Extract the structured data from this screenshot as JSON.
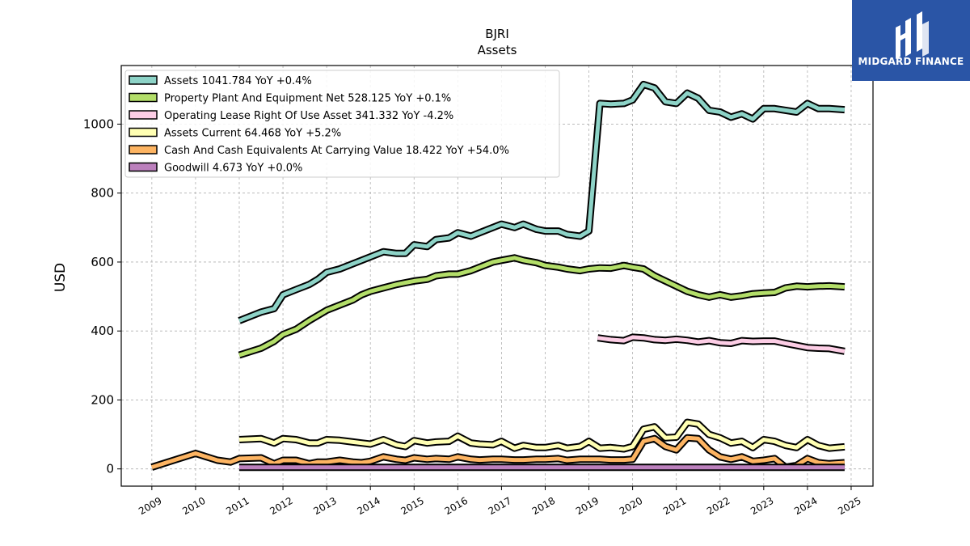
{
  "chart_data": {
    "type": "line",
    "title": "BJRI",
    "subtitle": "Assets",
    "xlabel": "",
    "ylabel": "USD",
    "xlim": [
      2008.3,
      2025.5
    ],
    "ylim": [
      -50,
      1170
    ],
    "grid": true,
    "legend_position": "top-left",
    "x_ticks": [
      "2009",
      "2010",
      "2011",
      "2012",
      "2013",
      "2014",
      "2015",
      "2016",
      "2017",
      "2018",
      "2019",
      "2020",
      "2021",
      "2022",
      "2023",
      "2024",
      "2025"
    ],
    "y_ticks": [
      0,
      200,
      400,
      600,
      800,
      1000
    ],
    "series": [
      {
        "name": "Assets",
        "legend_label": "Assets  1041.784 YoY +0.4%",
        "color": "#8dd3c7",
        "points": [
          [
            2011.0,
            430
          ],
          [
            2011.5,
            455
          ],
          [
            2011.8,
            465
          ],
          [
            2012.0,
            505
          ],
          [
            2012.3,
            520
          ],
          [
            2012.6,
            535
          ],
          [
            2012.8,
            550
          ],
          [
            2013.0,
            570
          ],
          [
            2013.3,
            580
          ],
          [
            2013.6,
            595
          ],
          [
            2013.8,
            605
          ],
          [
            2014.0,
            615
          ],
          [
            2014.3,
            630
          ],
          [
            2014.6,
            625
          ],
          [
            2014.8,
            625
          ],
          [
            2015.0,
            650
          ],
          [
            2015.3,
            645
          ],
          [
            2015.5,
            665
          ],
          [
            2015.8,
            670
          ],
          [
            2016.0,
            685
          ],
          [
            2016.3,
            675
          ],
          [
            2016.5,
            685
          ],
          [
            2016.8,
            700
          ],
          [
            2017.0,
            710
          ],
          [
            2017.3,
            700
          ],
          [
            2017.5,
            710
          ],
          [
            2017.8,
            695
          ],
          [
            2018.0,
            690
          ],
          [
            2018.3,
            690
          ],
          [
            2018.5,
            680
          ],
          [
            2018.8,
            675
          ],
          [
            2019.0,
            690
          ],
          [
            2019.25,
            1060
          ],
          [
            2019.5,
            1058
          ],
          [
            2019.8,
            1060
          ],
          [
            2020.0,
            1070
          ],
          [
            2020.25,
            1115
          ],
          [
            2020.5,
            1105
          ],
          [
            2020.75,
            1065
          ],
          [
            2021.0,
            1060
          ],
          [
            2021.25,
            1090
          ],
          [
            2021.5,
            1075
          ],
          [
            2021.75,
            1040
          ],
          [
            2022.0,
            1035
          ],
          [
            2022.25,
            1020
          ],
          [
            2022.5,
            1030
          ],
          [
            2022.75,
            1015
          ],
          [
            2023.0,
            1045
          ],
          [
            2023.25,
            1045
          ],
          [
            2023.5,
            1040
          ],
          [
            2023.75,
            1035
          ],
          [
            2024.0,
            1060
          ],
          [
            2024.25,
            1045
          ],
          [
            2024.5,
            1045
          ],
          [
            2024.85,
            1042
          ]
        ]
      },
      {
        "name": "Property Plant And Equipment Net",
        "legend_label": "Property Plant And Equipment Net  528.125 YoY +0.1%",
        "color": "#b3de69",
        "points": [
          [
            2011.0,
            330
          ],
          [
            2011.5,
            350
          ],
          [
            2011.8,
            370
          ],
          [
            2012.0,
            390
          ],
          [
            2012.3,
            405
          ],
          [
            2012.6,
            430
          ],
          [
            2012.8,
            445
          ],
          [
            2013.0,
            460
          ],
          [
            2013.3,
            475
          ],
          [
            2013.6,
            490
          ],
          [
            2013.8,
            505
          ],
          [
            2014.0,
            515
          ],
          [
            2014.3,
            525
          ],
          [
            2014.6,
            535
          ],
          [
            2014.8,
            540
          ],
          [
            2015.0,
            545
          ],
          [
            2015.3,
            550
          ],
          [
            2015.5,
            560
          ],
          [
            2015.8,
            565
          ],
          [
            2016.0,
            565
          ],
          [
            2016.3,
            575
          ],
          [
            2016.5,
            585
          ],
          [
            2016.8,
            600
          ],
          [
            2017.0,
            605
          ],
          [
            2017.3,
            612
          ],
          [
            2017.5,
            605
          ],
          [
            2017.8,
            598
          ],
          [
            2018.0,
            590
          ],
          [
            2018.3,
            585
          ],
          [
            2018.5,
            580
          ],
          [
            2018.8,
            575
          ],
          [
            2019.0,
            580
          ],
          [
            2019.25,
            583
          ],
          [
            2019.5,
            582
          ],
          [
            2019.8,
            590
          ],
          [
            2020.0,
            585
          ],
          [
            2020.25,
            580
          ],
          [
            2020.5,
            560
          ],
          [
            2020.75,
            545
          ],
          [
            2021.0,
            530
          ],
          [
            2021.25,
            515
          ],
          [
            2021.5,
            505
          ],
          [
            2021.75,
            498
          ],
          [
            2022.0,
            505
          ],
          [
            2022.25,
            498
          ],
          [
            2022.5,
            502
          ],
          [
            2022.75,
            508
          ],
          [
            2023.0,
            510
          ],
          [
            2023.25,
            512
          ],
          [
            2023.5,
            525
          ],
          [
            2023.75,
            530
          ],
          [
            2024.0,
            528
          ],
          [
            2024.25,
            530
          ],
          [
            2024.5,
            531
          ],
          [
            2024.85,
            528
          ]
        ]
      },
      {
        "name": "Operating Lease Right Of Use Asset",
        "legend_label": "Operating Lease Right Of Use Asset  341.332 YoY -4.2%",
        "color": "#fccde5",
        "points": [
          [
            2019.2,
            380
          ],
          [
            2019.5,
            375
          ],
          [
            2019.8,
            372
          ],
          [
            2020.0,
            382
          ],
          [
            2020.25,
            380
          ],
          [
            2020.5,
            375
          ],
          [
            2020.75,
            373
          ],
          [
            2021.0,
            376
          ],
          [
            2021.25,
            373
          ],
          [
            2021.5,
            368
          ],
          [
            2021.75,
            372
          ],
          [
            2022.0,
            366
          ],
          [
            2022.25,
            364
          ],
          [
            2022.5,
            372
          ],
          [
            2022.75,
            370
          ],
          [
            2023.0,
            371
          ],
          [
            2023.25,
            371
          ],
          [
            2023.5,
            364
          ],
          [
            2023.75,
            358
          ],
          [
            2024.0,
            352
          ],
          [
            2024.25,
            350
          ],
          [
            2024.5,
            349
          ],
          [
            2024.85,
            341
          ]
        ]
      },
      {
        "name": "Assets Current",
        "legend_label": "Assets Current  64.468 YoY +5.2%",
        "color": "#ffffb3",
        "points": [
          [
            2011.0,
            85
          ],
          [
            2011.5,
            88
          ],
          [
            2011.8,
            75
          ],
          [
            2012.0,
            88
          ],
          [
            2012.3,
            85
          ],
          [
            2012.6,
            75
          ],
          [
            2012.8,
            75
          ],
          [
            2013.0,
            85
          ],
          [
            2013.3,
            83
          ],
          [
            2013.6,
            78
          ],
          [
            2013.8,
            75
          ],
          [
            2014.0,
            72
          ],
          [
            2014.3,
            85
          ],
          [
            2014.6,
            70
          ],
          [
            2014.8,
            65
          ],
          [
            2015.0,
            82
          ],
          [
            2015.3,
            75
          ],
          [
            2015.5,
            78
          ],
          [
            2015.8,
            80
          ],
          [
            2016.0,
            95
          ],
          [
            2016.3,
            75
          ],
          [
            2016.5,
            72
          ],
          [
            2016.8,
            70
          ],
          [
            2017.0,
            80
          ],
          [
            2017.3,
            60
          ],
          [
            2017.5,
            68
          ],
          [
            2017.8,
            62
          ],
          [
            2018.0,
            62
          ],
          [
            2018.3,
            68
          ],
          [
            2018.5,
            60
          ],
          [
            2018.8,
            65
          ],
          [
            2019.0,
            80
          ],
          [
            2019.25,
            60
          ],
          [
            2019.5,
            62
          ],
          [
            2019.8,
            58
          ],
          [
            2020.0,
            65
          ],
          [
            2020.25,
            115
          ],
          [
            2020.5,
            122
          ],
          [
            2020.75,
            90
          ],
          [
            2021.0,
            92
          ],
          [
            2021.25,
            135
          ],
          [
            2021.5,
            130
          ],
          [
            2021.75,
            100
          ],
          [
            2022.0,
            90
          ],
          [
            2022.25,
            75
          ],
          [
            2022.5,
            80
          ],
          [
            2022.75,
            62
          ],
          [
            2023.0,
            85
          ],
          [
            2023.25,
            80
          ],
          [
            2023.5,
            68
          ],
          [
            2023.75,
            62
          ],
          [
            2024.0,
            85
          ],
          [
            2024.25,
            68
          ],
          [
            2024.5,
            60
          ],
          [
            2024.85,
            64
          ]
        ]
      },
      {
        "name": "Cash And Cash Equivalents At Carrying Value",
        "legend_label": "Cash And Cash Equivalents At Carrying Value  18.422 YoY +54.0%",
        "color": "#fdb462",
        "points": [
          [
            2009.0,
            5
          ],
          [
            2009.5,
            25
          ],
          [
            2010.0,
            45
          ],
          [
            2010.5,
            25
          ],
          [
            2010.8,
            20
          ],
          [
            2011.0,
            30
          ],
          [
            2011.5,
            32
          ],
          [
            2011.8,
            15
          ],
          [
            2012.0,
            25
          ],
          [
            2012.3,
            25
          ],
          [
            2012.6,
            15
          ],
          [
            2012.8,
            20
          ],
          [
            2013.0,
            20
          ],
          [
            2013.3,
            25
          ],
          [
            2013.6,
            20
          ],
          [
            2013.8,
            18
          ],
          [
            2014.0,
            22
          ],
          [
            2014.3,
            35
          ],
          [
            2014.6,
            28
          ],
          [
            2014.8,
            25
          ],
          [
            2015.0,
            32
          ],
          [
            2015.3,
            28
          ],
          [
            2015.5,
            30
          ],
          [
            2015.8,
            28
          ],
          [
            2016.0,
            35
          ],
          [
            2016.3,
            28
          ],
          [
            2016.5,
            26
          ],
          [
            2016.8,
            28
          ],
          [
            2017.0,
            28
          ],
          [
            2017.3,
            26
          ],
          [
            2017.5,
            26
          ],
          [
            2017.8,
            28
          ],
          [
            2018.0,
            28
          ],
          [
            2018.3,
            30
          ],
          [
            2018.5,
            25
          ],
          [
            2018.8,
            28
          ],
          [
            2019.0,
            28
          ],
          [
            2019.25,
            28
          ],
          [
            2019.5,
            26
          ],
          [
            2019.8,
            26
          ],
          [
            2020.0,
            28
          ],
          [
            2020.25,
            80
          ],
          [
            2020.5,
            88
          ],
          [
            2020.75,
            65
          ],
          [
            2021.0,
            55
          ],
          [
            2021.25,
            90
          ],
          [
            2021.5,
            88
          ],
          [
            2021.75,
            55
          ],
          [
            2022.0,
            35
          ],
          [
            2022.25,
            28
          ],
          [
            2022.5,
            35
          ],
          [
            2022.75,
            22
          ],
          [
            2023.0,
            25
          ],
          [
            2023.25,
            30
          ],
          [
            2023.5,
            5
          ],
          [
            2023.75,
            10
          ],
          [
            2024.0,
            30
          ],
          [
            2024.25,
            18
          ],
          [
            2024.5,
            15
          ],
          [
            2024.85,
            18
          ]
        ]
      },
      {
        "name": "Goodwill",
        "legend_label": "Goodwill  4.673 YoY +0.0%",
        "color": "#bc80bd",
        "points": [
          [
            2011.0,
            4.7
          ],
          [
            2024.85,
            4.7
          ]
        ]
      }
    ]
  },
  "logo": {
    "text": "MIDGARD FINANCE"
  }
}
